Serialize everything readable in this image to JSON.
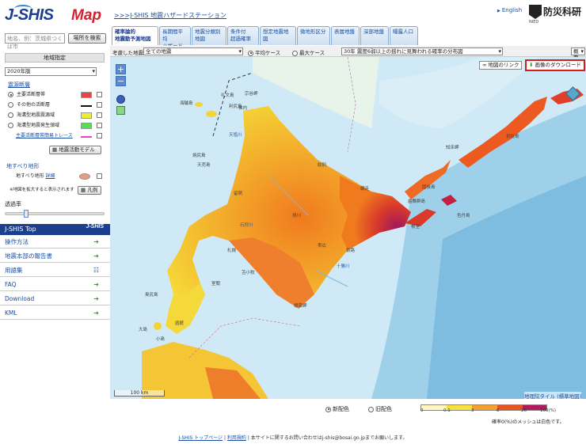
{
  "header": {
    "logo_text": "J-SHIS Map",
    "hazard_link": ">>>J-SHIS 地震ハザードステーション",
    "english_link": "English",
    "nied_name": "防災科研",
    "nied_sub": "NIED"
  },
  "search": {
    "placeholder": "地名、例：茨城県つくば市",
    "button": "場所を検索"
  },
  "tabs": [
    {
      "line1": "確率論的",
      "line2": "地震動予測地図"
    },
    {
      "line1": "長期間平均",
      "line2": "ハザード"
    },
    {
      "line1": "地震分類別",
      "line2": "地図"
    },
    {
      "line1": "条件付",
      "line2": "超過確率"
    },
    {
      "line1": "想定地震地図",
      "line2": ""
    },
    {
      "line1": "微地形区分",
      "line2": ""
    },
    {
      "line1": "表層地盤",
      "line2": ""
    },
    {
      "line1": "深部地盤",
      "line2": ""
    },
    {
      "line1": "曝露人口",
      "line2": ""
    }
  ],
  "toolbar": {
    "eq_label": "考慮した地震",
    "eq_value": "全ての地震",
    "case_avg": "平均ケース",
    "case_max": "最大ケース",
    "map_select": "30年 震度6弱以上の揺れに見舞われる確率の分布図",
    "overview": "概要"
  },
  "sidebar": {
    "region_head": "地域指定",
    "year": "2020年版",
    "fault_title": "震源断層",
    "faults": [
      {
        "label": "主要活断層帯",
        "color": "#e84545"
      },
      {
        "label": "その他の活断層",
        "color": "#111111"
      },
      {
        "label": "海溝型地震震源域",
        "color": "#ecec3a"
      },
      {
        "label": "海溝型地震発生領域",
        "color": "#55dd55"
      },
      {
        "label": "主要活断層帯簡易トレース",
        "color": "#ee3fcf"
      }
    ],
    "fault_model_btn": "地震活動モデル",
    "landslide_title": "地すべり地形",
    "landslide_label": "地すべり地形",
    "landslide_detail": "詳細",
    "landslide_note": "※地図を拡大すると表示されます",
    "legend_btn": "凡例",
    "opacity_label": "透過率"
  },
  "menu": {
    "head": "J-SHIS Top",
    "items": [
      "操作方法",
      "地震本部の報告書",
      "用語集",
      "FAQ",
      "Download",
      "KML"
    ]
  },
  "map": {
    "link_btn": "地図のリンク",
    "download_btn": "画像のダウンロード",
    "scale": "100 km",
    "attribution": "地理院タイル (標準地図)",
    "labels": [
      "礼文島",
      "利尻島",
      "海驢島",
      "天売島",
      "焼尻島",
      "稚内",
      "宗谷岬",
      "紋別",
      "網走",
      "知床岬",
      "国後島",
      "択捉島",
      "色丹島",
      "歯舞群島",
      "根室",
      "釧路",
      "襟裳岬",
      "室蘭",
      "函館",
      "奥尻島",
      "大島",
      "小島",
      "苫小牧",
      "札幌",
      "旭川",
      "帯広",
      "留萌",
      "十勝川",
      "天塩川",
      "石狩川"
    ]
  },
  "legend": {
    "new_color": "新配色",
    "old_color": "旧配色",
    "ticks": [
      "0",
      "0.1",
      "3",
      "6",
      "26",
      "100(%)"
    ],
    "colors": [
      "#ffffff",
      "#fff6c0",
      "#f7e23a",
      "#f2a12c",
      "#e8541f",
      "#b21a5e"
    ],
    "note": "確率0(%)のメッシュは白色です。"
  },
  "footer": {
    "top_link": "J-SHIS トップページ",
    "terms_link": "利用規約",
    "contact_text": "本サイトに関するお問い合わせは",
    "email": "j-shis@bosai.go.jp",
    "contact_tail": "までお願いします。"
  }
}
